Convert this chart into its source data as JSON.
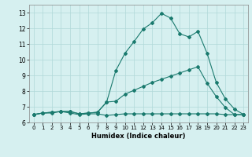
{
  "xlabel": "Humidex (Indice chaleur)",
  "background_color": "#d6f0f0",
  "grid_color": "#b0d8d8",
  "line_color": "#1a7a6e",
  "xlim": [
    -0.5,
    23.5
  ],
  "ylim": [
    6.0,
    13.5
  ],
  "xticks": [
    0,
    1,
    2,
    3,
    4,
    5,
    6,
    7,
    8,
    9,
    10,
    11,
    12,
    13,
    14,
    15,
    16,
    17,
    18,
    19,
    20,
    21,
    22,
    23
  ],
  "yticks": [
    6,
    7,
    8,
    9,
    10,
    11,
    12,
    13
  ],
  "series": [
    {
      "x": [
        0,
        1,
        2,
        3,
        4,
        5,
        6,
        7,
        8,
        9,
        10,
        11,
        12,
        13,
        14,
        15,
        16,
        17,
        18,
        19,
        20,
        21,
        22,
        23
      ],
      "y": [
        6.5,
        6.6,
        6.6,
        6.7,
        6.6,
        6.5,
        6.55,
        6.55,
        6.45,
        6.5,
        6.55,
        6.55,
        6.55,
        6.55,
        6.55,
        6.55,
        6.55,
        6.55,
        6.55,
        6.55,
        6.55,
        6.5,
        6.5,
        6.5
      ]
    },
    {
      "x": [
        0,
        1,
        2,
        3,
        4,
        5,
        6,
        7,
        8,
        9,
        10,
        11,
        12,
        13,
        14,
        15,
        16,
        17,
        18,
        19,
        20,
        21,
        22,
        23
      ],
      "y": [
        6.5,
        6.6,
        6.65,
        6.7,
        6.7,
        6.55,
        6.6,
        6.65,
        7.3,
        7.35,
        7.8,
        8.05,
        8.3,
        8.55,
        8.75,
        8.95,
        9.15,
        9.35,
        9.55,
        8.5,
        7.65,
        6.95,
        6.5,
        6.5
      ]
    },
    {
      "x": [
        0,
        1,
        2,
        3,
        4,
        5,
        6,
        7,
        8,
        9,
        10,
        11,
        12,
        13,
        14,
        15,
        16,
        17,
        18,
        19,
        20,
        21,
        22,
        23
      ],
      "y": [
        6.5,
        6.6,
        6.65,
        6.7,
        6.7,
        6.55,
        6.6,
        6.65,
        7.3,
        9.3,
        10.4,
        11.15,
        11.95,
        12.35,
        12.95,
        12.65,
        11.65,
        11.45,
        11.8,
        10.4,
        8.55,
        7.5,
        6.85,
        6.5
      ]
    }
  ]
}
